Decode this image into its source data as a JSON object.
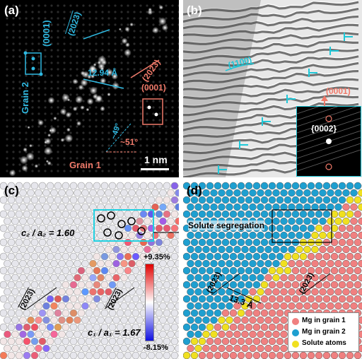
{
  "panels": {
    "a": {
      "label": "(a)",
      "plane_blue_1": "(0001)",
      "plane_blue_2": "(2023)",
      "plane_red_1": "(2023)",
      "plane_red_2": "(0001)",
      "distance": "12.94 Å",
      "angle_1": "~49°",
      "angle_2": "~51°",
      "grain_1": "Grain 1",
      "grain_2": "Grain 2",
      "scale_bar": "1 nm",
      "colors": {
        "blue": "#2fb8e0",
        "red": "#f07a6a"
      }
    },
    "b": {
      "label": "(b)",
      "plane_blue": "(1100)",
      "plane_red": "(0001)",
      "inset_label": "{0002}",
      "colors": {
        "blue": "#1ec8d8",
        "red": "#f07a6a"
      }
    },
    "c": {
      "label": "(c)",
      "ratio_2": "c₂ / a₂ = 1.60",
      "ratio_1": "c₁ / a₁ = 1.67",
      "plane_1": "(2023)",
      "plane_2": "(2023)",
      "colorbar_max": "+9.35%",
      "colorbar_min": "-8.15%"
    },
    "d": {
      "label": "(d)",
      "annotation": "Solute segregation",
      "plane_1": "(2023)",
      "plane_2": "(2023)",
      "distance": "13.3 Å",
      "legend": [
        {
          "label": "Mg in grain 1",
          "color": "#f08080"
        },
        {
          "label": "Mg in grain 2",
          "color": "#1e9fd0"
        },
        {
          "label": "Solute atoms",
          "color": "#f0e020"
        }
      ]
    }
  }
}
